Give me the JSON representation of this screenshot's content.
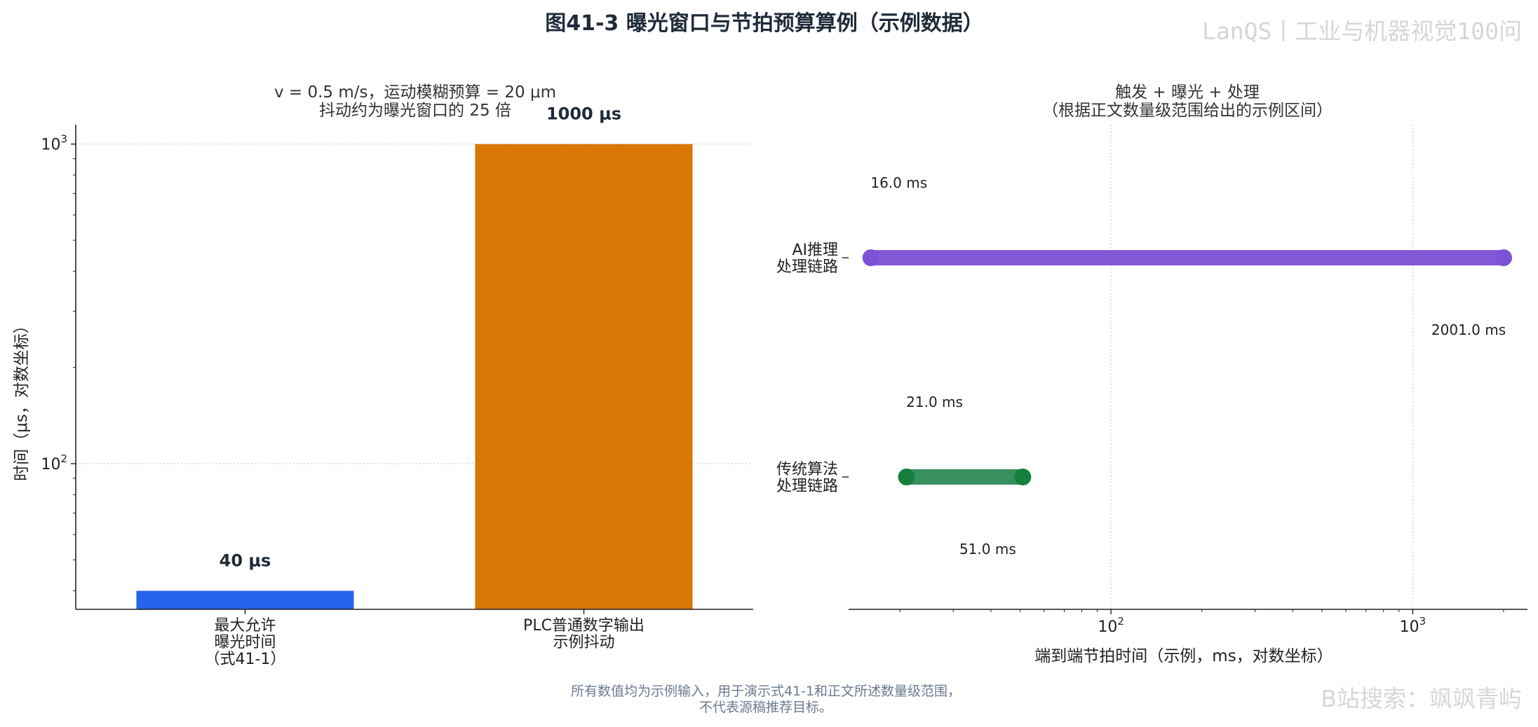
{
  "figure": {
    "title": "图41-3 曝光窗口与节拍预算算例（示例数据）",
    "watermark_top": "LanQS丨工业与机器视觉100问",
    "watermark_bottom": "B站搜索：飒飒青屿",
    "footnote_line1": "所有数值均为示例输入，用于演示式41-1和正文所述数量级范围，",
    "footnote_line2": "不代表源稿推荐目标。"
  },
  "chart_data": [
    {
      "type": "bar",
      "subtitle_line1": "v = 0.5 m/s，运动模糊预算 = 20 μm",
      "subtitle_line2": "抖动约为曝光窗口的 25 倍",
      "ylabel": "时间（μs，对数坐标）",
      "yscale": "log",
      "ylim": [
        35,
        1150
      ],
      "yticks": [
        {
          "value": 100,
          "base": "10",
          "exp": "2"
        },
        {
          "value": 1000,
          "base": "10",
          "exp": "3"
        }
      ],
      "grid": true,
      "categories": [
        {
          "lines": [
            "最大允许",
            "曝光时间",
            "（式41-1）"
          ]
        },
        {
          "lines": [
            "PLC普通数字输出",
            "示例抖动"
          ]
        }
      ],
      "values": [
        40,
        1000
      ],
      "value_labels": [
        "40 μs",
        "1000 μs"
      ],
      "colors": [
        "#2563eb",
        "#d97706"
      ]
    },
    {
      "type": "range",
      "subtitle_line1": "触发 + 曝光 + 处理",
      "subtitle_line2": "（根据正文数量级范围给出的示例区间）",
      "xlabel": "端到端节拍时间（示例，ms，对数坐标）",
      "xscale": "log",
      "xlim": [
        13.5,
        2400
      ],
      "xticks": [
        {
          "value": 100,
          "base": "10",
          "exp": "2"
        },
        {
          "value": 1000,
          "base": "10",
          "exp": "3"
        }
      ],
      "grid": true,
      "series": [
        {
          "name_lines": [
            "AI推理",
            "处理链路"
          ],
          "min": 16.0,
          "max": 2001.0,
          "min_label": "16.0 ms",
          "max_label": "2001.0 ms",
          "color": "#7c52d6",
          "dot": "#7c52d6"
        },
        {
          "name_lines": [
            "传统算法",
            "处理链路"
          ],
          "min": 21.0,
          "max": 51.0,
          "min_label": "21.0 ms",
          "max_label": "51.0 ms",
          "color": "#2e8b57",
          "dot": "#15803d"
        }
      ]
    }
  ]
}
